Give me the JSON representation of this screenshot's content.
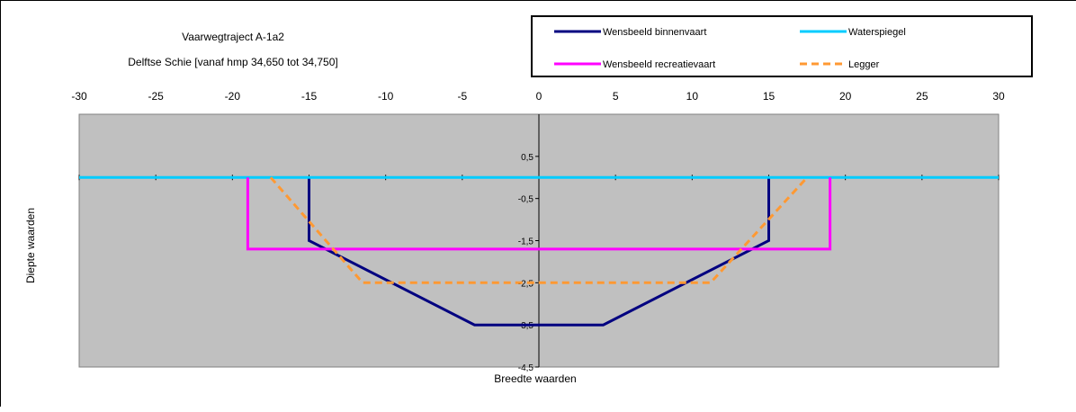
{
  "chart_data": {
    "type": "line",
    "title_lines": [
      "Vaarwegtraject A-1a2",
      "Delftse Schie  [vanaf hmp 34,650 tot 34,750]"
    ],
    "xlabel": "Breedte waarden",
    "ylabel": "Diepte waarden",
    "xlim": [
      -30,
      30
    ],
    "ylim": [
      -4.5,
      1.5
    ],
    "x_ticks": [
      -30,
      -25,
      -20,
      -15,
      -10,
      -5,
      0,
      5,
      10,
      15,
      20,
      25,
      30
    ],
    "y_ticks": [
      0.5,
      -0.5,
      -1.5,
      -2.5,
      -3.5,
      -4.5
    ],
    "x_tick_labels": [
      "-30",
      "-25",
      "-20",
      "-15",
      "-10",
      "-5",
      "0",
      "5",
      "10",
      "15",
      "20",
      "25",
      "30"
    ],
    "y_tick_labels": [
      "0,5",
      "-0,5",
      "-1,5",
      "-2,5",
      "-3,5",
      "-4,5"
    ],
    "grid": false,
    "legend_position": "top-right",
    "plot_background": "#c0c0c0",
    "series": [
      {
        "name": "Wensbeeld binnenvaart",
        "color": "#000080",
        "dash": "solid",
        "x": [
          -15,
          -15,
          -4.2,
          4.2,
          15,
          15
        ],
        "y": [
          0,
          -1.5,
          -3.5,
          -3.5,
          -1.5,
          0
        ]
      },
      {
        "name": "Waterspiegel",
        "color": "#00ccff",
        "dash": "solid",
        "x": [
          -30,
          30
        ],
        "y": [
          0,
          0
        ]
      },
      {
        "name": "Wensbeeld recreatievaart",
        "color": "#ff00ff",
        "dash": "solid",
        "x": [
          -19,
          -19,
          19,
          19
        ],
        "y": [
          0,
          -1.7,
          -1.7,
          0
        ]
      },
      {
        "name": "Legger",
        "color": "#ff9933",
        "dash": "dashed",
        "x": [
          -17.5,
          -11.5,
          11.2,
          17.5
        ],
        "y": [
          0,
          -2.5,
          -2.5,
          0
        ]
      }
    ]
  }
}
